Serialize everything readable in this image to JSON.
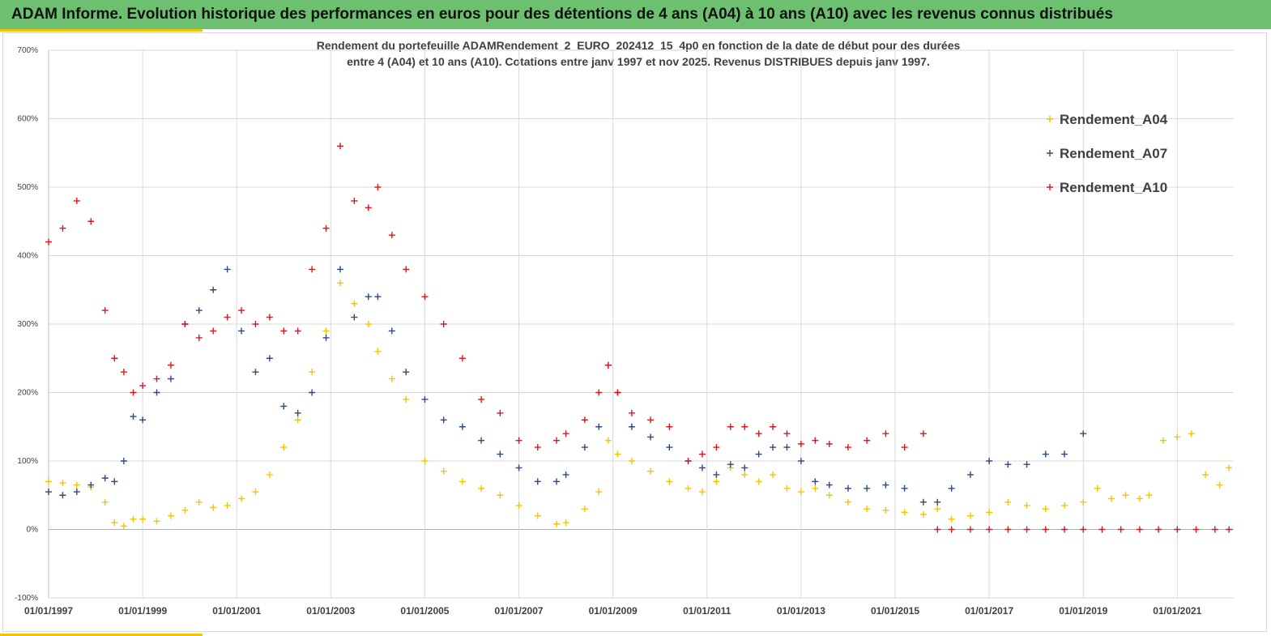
{
  "header": {
    "title": "ADAM Informe. Evolution historique des performances en euros pour des détentions de 4 ans (A04) à 10 ans (A10) avec les revenus connus distribués"
  },
  "colors": {
    "banner": "#6cc070",
    "accent": "#f5c400",
    "A04": "#f5c400",
    "A07": "#2e4a7a",
    "A10": "#e0141e"
  },
  "chart_data": {
    "type": "scatter",
    "title_lines": [
      "Rendement du portefeuille ADAMRendement_2_EURO_202412_15_4p0  en fonction de la date de début pour des durées",
      "entre 4 (A04) et 10 ans (A10). Cotations entre janv 1997 et nov 2025. Revenus DISTRIBUES depuis janv 1997."
    ],
    "xlabel": "",
    "ylabel": "",
    "xlim": [
      1997.0,
      2022.2
    ],
    "ylim": [
      -100,
      700
    ],
    "grid": true,
    "legend_position": "top-right",
    "y_ticks": [
      {
        "value": 700,
        "label": "700%"
      },
      {
        "value": 600,
        "label": "600%"
      },
      {
        "value": 500,
        "label": "500%"
      },
      {
        "value": 400,
        "label": "400%"
      },
      {
        "value": 300,
        "label": "300%"
      },
      {
        "value": 200,
        "label": "200%"
      },
      {
        "value": 100,
        "label": "100%"
      },
      {
        "value": 0,
        "label": "0%"
      },
      {
        "value": -100,
        "label": "-100%"
      }
    ],
    "x_ticks": [
      {
        "value": 1997,
        "label": "01/01/1997"
      },
      {
        "value": 1999,
        "label": "01/01/1999"
      },
      {
        "value": 2001,
        "label": "01/01/2001"
      },
      {
        "value": 2003,
        "label": "01/01/2003"
      },
      {
        "value": 2005,
        "label": "01/01/2005"
      },
      {
        "value": 2007,
        "label": "01/01/2007"
      },
      {
        "value": 2009,
        "label": "01/01/2009"
      },
      {
        "value": 2011,
        "label": "01/01/2011"
      },
      {
        "value": 2013,
        "label": "01/01/2013"
      },
      {
        "value": 2015,
        "label": "01/01/2015"
      },
      {
        "value": 2017,
        "label": "01/01/2017"
      },
      {
        "value": 2019,
        "label": "01/01/2019"
      },
      {
        "value": 2021,
        "label": "01/01/2021"
      }
    ],
    "series": [
      {
        "name": "Rendement_A04",
        "marker": "+",
        "x": [
          1997.0,
          1997.3,
          1997.6,
          1997.9,
          1998.2,
          1998.4,
          1998.6,
          1998.8,
          1999.0,
          1999.3,
          1999.6,
          1999.9,
          2000.2,
          2000.5,
          2000.8,
          2001.1,
          2001.4,
          2001.7,
          2002.0,
          2002.3,
          2002.6,
          2002.9,
          2003.2,
          2003.5,
          2003.8,
          2004.0,
          2004.3,
          2004.6,
          2005.0,
          2005.4,
          2005.8,
          2006.2,
          2006.6,
          2007.0,
          2007.4,
          2007.8,
          2008.0,
          2008.4,
          2008.7,
          2008.9,
          2009.1,
          2009.4,
          2009.8,
          2010.2,
          2010.6,
          2010.9,
          2011.2,
          2011.5,
          2011.8,
          2012.1,
          2012.4,
          2012.7,
          2013.0,
          2013.3,
          2013.6,
          2014.0,
          2014.4,
          2014.8,
          2015.2,
          2015.6,
          2015.9,
          2016.2,
          2016.6,
          2017.0,
          2017.4,
          2017.8,
          2018.2,
          2018.6,
          2019.0,
          2019.3,
          2019.6,
          2019.9,
          2020.2,
          2020.4,
          2020.7,
          2021.0,
          2021.3,
          2021.6,
          2021.9,
          2022.1
        ],
        "values": [
          70,
          68,
          65,
          62,
          40,
          10,
          5,
          15,
          15,
          12,
          20,
          28,
          40,
          32,
          35,
          45,
          55,
          80,
          120,
          160,
          230,
          290,
          360,
          330,
          300,
          260,
          220,
          190,
          100,
          85,
          70,
          60,
          50,
          35,
          20,
          8,
          10,
          30,
          55,
          130,
          110,
          100,
          85,
          70,
          60,
          55,
          70,
          90,
          80,
          70,
          80,
          60,
          55,
          60,
          50,
          40,
          30,
          28,
          25,
          22,
          30,
          15,
          20,
          25,
          40,
          35,
          30,
          35,
          40,
          60,
          45,
          50,
          45,
          50,
          130,
          135,
          140,
          80,
          65,
          90
        ]
      },
      {
        "name": "Rendement_A07",
        "marker": "+",
        "x": [
          1997.0,
          1997.3,
          1997.6,
          1997.9,
          1998.2,
          1998.4,
          1998.6,
          1998.8,
          1999.0,
          1999.3,
          1999.6,
          1999.9,
          2000.2,
          2000.5,
          2000.8,
          2001.1,
          2001.4,
          2001.7,
          2002.0,
          2002.3,
          2002.6,
          2002.9,
          2003.2,
          2003.5,
          2003.8,
          2004.0,
          2004.3,
          2004.6,
          2005.0,
          2005.4,
          2005.8,
          2006.2,
          2006.6,
          2007.0,
          2007.4,
          2007.8,
          2008.0,
          2008.4,
          2008.7,
          2008.9,
          2009.1,
          2009.4,
          2009.8,
          2010.2,
          2010.6,
          2010.9,
          2011.2,
          2011.5,
          2011.8,
          2012.1,
          2012.4,
          2012.7,
          2013.0,
          2013.3,
          2013.6,
          2014.0,
          2014.4,
          2014.8,
          2015.2,
          2015.6,
          2015.9,
          2016.2,
          2016.6,
          2017.0,
          2017.4,
          2017.8,
          2018.2,
          2018.6,
          2019.0
        ],
        "values": [
          55,
          50,
          55,
          65,
          75,
          70,
          100,
          165,
          160,
          200,
          220,
          300,
          320,
          350,
          380,
          290,
          230,
          250,
          180,
          170,
          200,
          280,
          380,
          310,
          340,
          340,
          290,
          230,
          190,
          160,
          150,
          130,
          110,
          90,
          70,
          70,
          80,
          120,
          150,
          240,
          200,
          150,
          135,
          120,
          100,
          90,
          80,
          95,
          90,
          110,
          120,
          120,
          100,
          70,
          65,
          60,
          60,
          65,
          60,
          40,
          40,
          60,
          80,
          100,
          95,
          95,
          110,
          110,
          140
        ]
      },
      {
        "name": "Rendement_A10",
        "marker": "+",
        "x": [
          1997.0,
          1997.3,
          1997.6,
          1997.9,
          1998.2,
          1998.4,
          1998.6,
          1998.8,
          1999.0,
          1999.3,
          1999.6,
          1999.9,
          2000.2,
          2000.5,
          2000.8,
          2001.1,
          2001.4,
          2001.7,
          2002.0,
          2002.3,
          2002.6,
          2002.9,
          2003.2,
          2003.5,
          2003.8,
          2004.0,
          2004.3,
          2004.6,
          2005.0,
          2005.4,
          2005.8,
          2006.2,
          2006.6,
          2007.0,
          2007.4,
          2007.8,
          2008.0,
          2008.4,
          2008.7,
          2008.9,
          2009.1,
          2009.4,
          2009.8,
          2010.2,
          2010.6,
          2010.9,
          2011.2,
          2011.5,
          2011.8,
          2012.1,
          2012.4,
          2012.7,
          2013.0,
          2013.3,
          2013.6,
          2014.0,
          2014.4,
          2014.8,
          2015.2,
          2015.6,
          2015.9,
          2016.2,
          2016.6,
          2017.0,
          2017.4,
          2017.8,
          2018.2,
          2018.6,
          2019.0,
          2019.4,
          2019.8,
          2020.2,
          2020.6,
          2021.0,
          2021.4,
          2021.8,
          2022.1
        ],
        "values": [
          420,
          440,
          480,
          450,
          320,
          250,
          230,
          200,
          210,
          220,
          240,
          300,
          280,
          290,
          310,
          320,
          300,
          310,
          290,
          290,
          380,
          440,
          560,
          480,
          470,
          500,
          430,
          380,
          340,
          300,
          250,
          190,
          170,
          130,
          120,
          130,
          140,
          160,
          200,
          240,
          200,
          170,
          160,
          150,
          100,
          110,
          120,
          150,
          150,
          140,
          150,
          140,
          125,
          130,
          125,
          120,
          130,
          140,
          120,
          140,
          0,
          0,
          0,
          0,
          0,
          0,
          0,
          0,
          0,
          0,
          0,
          0,
          0,
          0,
          0,
          0,
          0
        ]
      }
    ]
  }
}
